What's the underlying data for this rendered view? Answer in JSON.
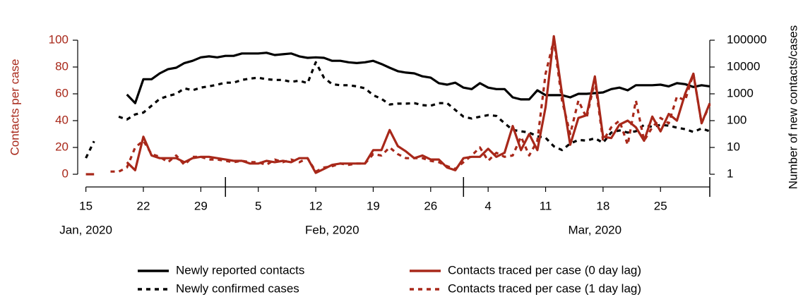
{
  "chart_data": {
    "type": "line",
    "y_label": "Contacts per case",
    "y2_label": "Number of new contacts/cases",
    "x": [
      "2020-01-15",
      "2020-01-16",
      "2020-01-17",
      "2020-01-18",
      "2020-01-19",
      "2020-01-20",
      "2020-01-21",
      "2020-01-22",
      "2020-01-23",
      "2020-01-24",
      "2020-01-25",
      "2020-01-26",
      "2020-01-27",
      "2020-01-28",
      "2020-01-29",
      "2020-01-30",
      "2020-01-31",
      "2020-02-01",
      "2020-02-02",
      "2020-02-03",
      "2020-02-04",
      "2020-02-05",
      "2020-02-06",
      "2020-02-07",
      "2020-02-08",
      "2020-02-09",
      "2020-02-10",
      "2020-02-11",
      "2020-02-12",
      "2020-02-13",
      "2020-02-14",
      "2020-02-15",
      "2020-02-16",
      "2020-02-17",
      "2020-02-18",
      "2020-02-19",
      "2020-02-20",
      "2020-02-21",
      "2020-02-22",
      "2020-02-23",
      "2020-02-24",
      "2020-02-25",
      "2020-02-26",
      "2020-02-27",
      "2020-02-28",
      "2020-02-29",
      "2020-03-01",
      "2020-03-02",
      "2020-03-03",
      "2020-03-04",
      "2020-03-05",
      "2020-03-06",
      "2020-03-07",
      "2020-03-08",
      "2020-03-09",
      "2020-03-10",
      "2020-03-11",
      "2020-03-12",
      "2020-03-13",
      "2020-03-14",
      "2020-03-15",
      "2020-03-16",
      "2020-03-17",
      "2020-03-18",
      "2020-03-19",
      "2020-03-20",
      "2020-03-21",
      "2020-03-22",
      "2020-03-23",
      "2020-03-24",
      "2020-03-25",
      "2020-03-26",
      "2020-03-27",
      "2020-03-28",
      "2020-03-29",
      "2020-03-30",
      "2020-03-31"
    ],
    "xlim": [
      "2020-01-14",
      "2020-03-31"
    ],
    "xticks": [
      {
        "value": "2020-01-15",
        "label": "15"
      },
      {
        "value": "2020-01-22",
        "label": "22"
      },
      {
        "value": "2020-01-29",
        "label": "29"
      },
      {
        "value": "2020-02-05",
        "label": "5"
      },
      {
        "value": "2020-02-12",
        "label": "12"
      },
      {
        "value": "2020-02-19",
        "label": "19"
      },
      {
        "value": "2020-02-26",
        "label": "26"
      },
      {
        "value": "2020-03-04",
        "label": "4"
      },
      {
        "value": "2020-03-11",
        "label": "11"
      },
      {
        "value": "2020-03-18",
        "label": "18"
      },
      {
        "value": "2020-03-25",
        "label": "25"
      }
    ],
    "month_ticks": [
      "2020-02-01",
      "2020-03-01"
    ],
    "month_labels": [
      {
        "value": "2020-01-15",
        "label": "Jan, 2020"
      },
      {
        "value": "2020-02-14",
        "label": "Feb, 2020"
      },
      {
        "value": "2020-03-17",
        "label": "Mar, 2020"
      }
    ],
    "ylim": [
      0,
      100
    ],
    "yticks": [
      0,
      20,
      40,
      60,
      80,
      100
    ],
    "y_color": "#a8281a",
    "y2lim": [
      1,
      100000
    ],
    "y2ticks": [
      1,
      10,
      100,
      1000,
      10000,
      100000
    ],
    "y2_log": true,
    "series": [
      {
        "name": "Newly reported contacts",
        "color": "#000000",
        "line_style": "solid",
        "axis": "y2",
        "values": [
          null,
          null,
          null,
          null,
          null,
          940,
          450,
          3500,
          3500,
          5800,
          8300,
          9400,
          14000,
          17000,
          23000,
          25000,
          23000,
          26000,
          26000,
          32000,
          32000,
          32000,
          34000,
          28000,
          30000,
          32000,
          25000,
          22000,
          23000,
          22000,
          17000,
          17000,
          15000,
          14000,
          15000,
          17000,
          13000,
          9400,
          7000,
          6200,
          5800,
          4500,
          4000,
          2500,
          2200,
          2600,
          1700,
          1500,
          2500,
          1700,
          1500,
          1500,
          740,
          620,
          620,
          1350,
          890,
          890,
          890,
          740,
          1000,
          1000,
          1060,
          1130,
          1500,
          1700,
          1350,
          2100,
          2100,
          2100,
          2200,
          1900,
          2500,
          2300,
          1800,
          2100,
          1900
        ]
      },
      {
        "name": "Newly confirmed cases",
        "color": "#000000",
        "line_style": "dashed",
        "axis": "y2",
        "values": [
          4,
          17,
          null,
          null,
          140,
          110,
          170,
          200,
          360,
          650,
          830,
          1000,
          1600,
          1350,
          1700,
          1900,
          2200,
          2600,
          2600,
          3300,
          3700,
          4000,
          3500,
          3300,
          3300,
          2800,
          3100,
          2500,
          15000,
          4000,
          2300,
          2100,
          2100,
          1900,
          1600,
          890,
          650,
          400,
          430,
          430,
          450,
          380,
          360,
          450,
          450,
          250,
          140,
          120,
          140,
          160,
          150,
          80,
          45,
          40,
          36,
          26,
          23,
          11,
          8,
          14,
          19,
          18,
          22,
          15,
          36,
          43,
          36,
          40,
          70,
          58,
          70,
          65,
          55,
          48,
          38,
          51,
          40
        ]
      },
      {
        "name": "Contacts traced per case (0 day lag)",
        "color": "#a8281a",
        "line_style": "solid",
        "axis": "y",
        "values": [
          0,
          0,
          null,
          null,
          null,
          9,
          3,
          28,
          14,
          12,
          12,
          12,
          9,
          12,
          13,
          13,
          12,
          11,
          10,
          10,
          8,
          8,
          10,
          9,
          10,
          9,
          12,
          12,
          1,
          4,
          7,
          8,
          8,
          8,
          8,
          18,
          18,
          33,
          21,
          17,
          12,
          14,
          11,
          11,
          5,
          3,
          12,
          13,
          13,
          19,
          13,
          16,
          36,
          18,
          30,
          18,
          50,
          103,
          60,
          22,
          42,
          44,
          73,
          28,
          27,
          37,
          40,
          35,
          25,
          43,
          32,
          45,
          40,
          60,
          75,
          38,
          53
        ]
      },
      {
        "name": "Contacts traced per case (1 day lag)",
        "color": "#a8281a",
        "line_style": "dashed",
        "axis": "y",
        "values": [
          null,
          null,
          null,
          2,
          2,
          5,
          20,
          25,
          15,
          13,
          9,
          14,
          7,
          13,
          13,
          11,
          11,
          10,
          9,
          10,
          9,
          9,
          7,
          11,
          9,
          11,
          9,
          12,
          2,
          5,
          6,
          8,
          7,
          8,
          8,
          15,
          14,
          20,
          15,
          12,
          12,
          12,
          10,
          9,
          6,
          4,
          9,
          14,
          20,
          10,
          16,
          13,
          14,
          28,
          14,
          25,
          75,
          100,
          55,
          30,
          55,
          42,
          70,
          25,
          35,
          40,
          22,
          55,
          25,
          35,
          42,
          38,
          58,
          55,
          75,
          38,
          52
        ]
      }
    ]
  }
}
